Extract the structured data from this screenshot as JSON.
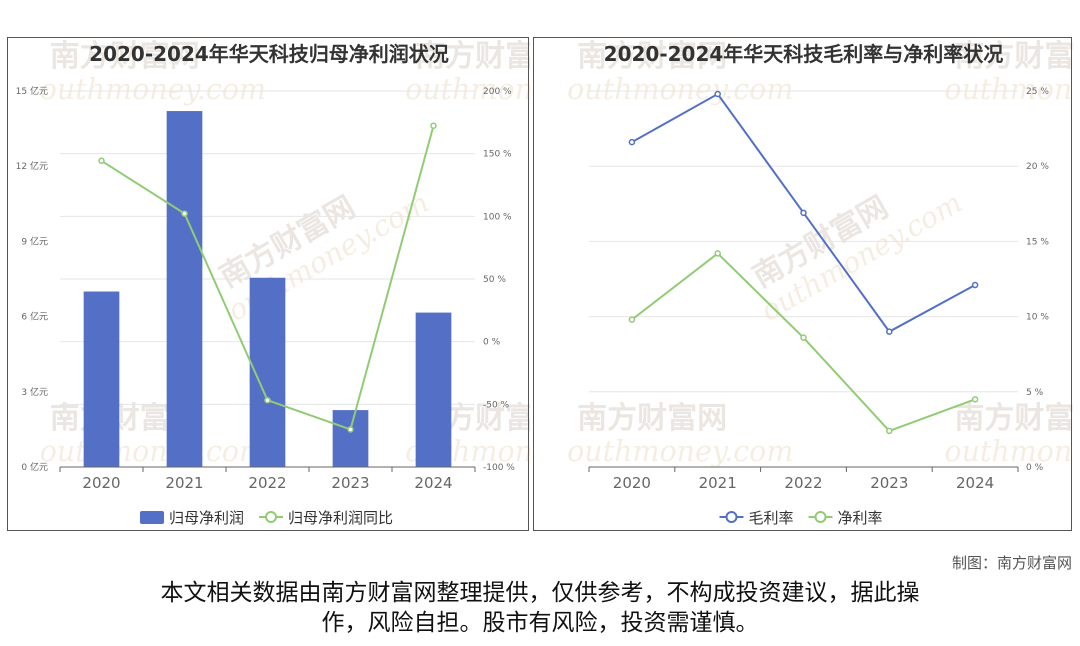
{
  "watermark": {
    "cn": "南方财富网",
    "en": "outhmoney.com"
  },
  "chart_data": [
    {
      "type": "bar",
      "title": "2020-2024年华天科技归母净利润状况",
      "categories": [
        "2020",
        "2021",
        "2022",
        "2023",
        "2024"
      ],
      "series": [
        {
          "name": "归母净利润",
          "kind": "bar",
          "axis": "left",
          "color": "#5470c6",
          "values": [
            7.0,
            14.2,
            7.55,
            2.27,
            6.16
          ]
        },
        {
          "name": "归母净利润同比",
          "kind": "line",
          "axis": "right",
          "color": "#91cc75",
          "values": [
            144.3,
            102.2,
            -46.7,
            -70.0,
            172.3
          ]
        }
      ],
      "left_axis": {
        "min": 0,
        "max": 15,
        "ticks": [
          0,
          3,
          6,
          9,
          12,
          15
        ],
        "labels": [
          "0 亿元",
          "3 亿元",
          "6 亿元",
          "9 亿元",
          "12 亿元",
          "15 亿元"
        ]
      },
      "right_axis": {
        "min": -100,
        "max": 200,
        "ticks": [
          -100,
          -50,
          0,
          50,
          100,
          150,
          200
        ],
        "labels": [
          "-100 %",
          "-50 %",
          "0 %",
          "50 %",
          "100 %",
          "150 %",
          "200 %"
        ]
      },
      "legend_position": "bottom"
    },
    {
      "type": "line",
      "title": "2020-2024年华天科技毛利率与净利率状况",
      "categories": [
        "2020",
        "2021",
        "2022",
        "2023",
        "2024"
      ],
      "series": [
        {
          "name": "毛利率",
          "kind": "line",
          "axis": "right",
          "color": "#5470c6",
          "values": [
            21.6,
            24.8,
            16.9,
            9.0,
            12.1
          ]
        },
        {
          "name": "净利率",
          "kind": "line",
          "axis": "right",
          "color": "#91cc75",
          "values": [
            9.8,
            14.2,
            8.6,
            2.4,
            4.5
          ]
        }
      ],
      "right_axis": {
        "min": 0,
        "max": 25,
        "ticks": [
          0,
          5,
          10,
          15,
          20,
          25
        ],
        "labels": [
          "0 %",
          "5 %",
          "10 %",
          "15 %",
          "20 %",
          "25 %"
        ]
      },
      "legend_position": "bottom"
    }
  ],
  "footer": {
    "credit": "制图：南方财富网",
    "disclaimer_line1": "本文相关数据由南方财富网整理提供，仅供参考，不构成投资建议，据此操",
    "disclaimer_line2": "作，风险自担。股市有风险，投资需谨慎。"
  }
}
